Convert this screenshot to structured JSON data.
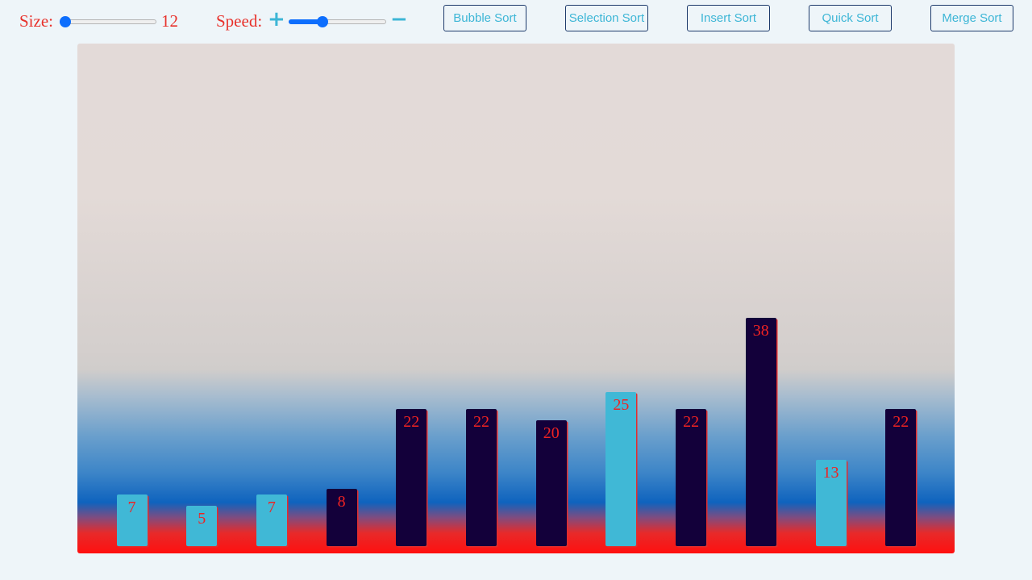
{
  "controls": {
    "size_label": "Size:",
    "size_value": "12",
    "size_fraction": 0.0,
    "speed_label": "Speed:",
    "speed_plus": "+",
    "speed_minus": "−",
    "speed_fraction": 0.33
  },
  "buttons": [
    {
      "id": "bubble",
      "label": "Bubble Sort"
    },
    {
      "id": "selection",
      "label": "Selection Sort"
    },
    {
      "id": "insert",
      "label": "Insert Sort"
    },
    {
      "id": "quick",
      "label": "Quick Sort"
    },
    {
      "id": "merge",
      "label": "Merge Sort"
    }
  ],
  "colors": {
    "bar_light": "#40b8d6",
    "bar_dark": "#13003a",
    "label": "#ef2222"
  },
  "bars": [
    {
      "value": 7,
      "state": "light"
    },
    {
      "value": 5,
      "state": "light"
    },
    {
      "value": 7,
      "state": "light"
    },
    {
      "value": 8,
      "state": "dark"
    },
    {
      "value": 22,
      "state": "dark"
    },
    {
      "value": 22,
      "state": "dark"
    },
    {
      "value": 20,
      "state": "dark"
    },
    {
      "value": 25,
      "state": "light"
    },
    {
      "value": 22,
      "state": "dark"
    },
    {
      "value": 38,
      "state": "dark"
    },
    {
      "value": 13,
      "state": "light"
    },
    {
      "value": 22,
      "state": "dark"
    }
  ]
}
